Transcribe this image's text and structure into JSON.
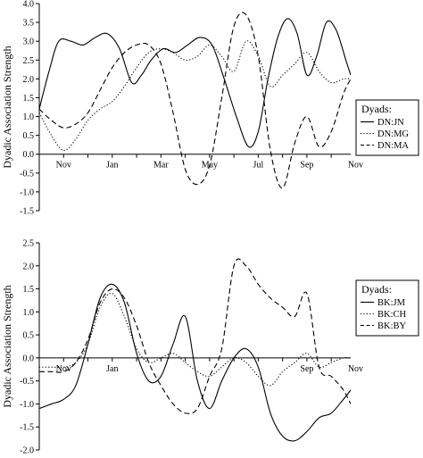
{
  "chart_data": [
    {
      "type": "line",
      "ylabel": "Dyadic Association Strength",
      "ylim": [
        -1.5,
        4.0
      ],
      "yticks": [
        "4.0",
        "3.5",
        "3.0",
        "2.5",
        "2.0",
        "1.5",
        "1.0",
        "0.5",
        "0.0",
        "-0.5",
        "-1.0",
        "-1.5"
      ],
      "xlim": [
        0,
        12.8
      ],
      "xticks": [
        {
          "label": "Nov",
          "x": 1
        },
        {
          "label": "Jan",
          "x": 3
        },
        {
          "label": "Mar",
          "x": 5
        },
        {
          "label": "May",
          "x": 7
        },
        {
          "label": "Jul",
          "x": 9
        },
        {
          "label": "Sep",
          "x": 11
        },
        {
          "label": "Nov",
          "x": 13
        }
      ],
      "legend": {
        "title": "Dyads:",
        "position": "right"
      },
      "series": [
        {
          "name": "DN:JN",
          "style": "solid",
          "x": [
            0,
            0.4,
            0.8,
            1.3,
            1.8,
            2.3,
            2.8,
            3.3,
            3.8,
            4.2,
            4.6,
            5.1,
            5.6,
            6.1,
            6.6,
            7.1,
            7.6,
            8.1,
            8.6,
            9.0,
            9.4,
            9.8,
            10.2,
            10.6,
            11.0,
            11.4,
            11.8,
            12.2,
            12.6,
            12.8
          ],
          "values": [
            1.2,
            2.2,
            3.0,
            3.0,
            2.9,
            3.1,
            3.2,
            2.8,
            1.9,
            2.1,
            2.5,
            2.8,
            2.7,
            2.9,
            3.1,
            2.9,
            2.0,
            1.0,
            0.2,
            0.6,
            2.0,
            3.1,
            3.6,
            3.2,
            2.1,
            2.6,
            3.5,
            3.3,
            2.5,
            2.1
          ]
        },
        {
          "name": "DN:MG",
          "style": "dotted",
          "x": [
            0,
            0.5,
            1.0,
            1.5,
            2.0,
            2.5,
            3.0,
            3.5,
            4.0,
            4.5,
            5.0,
            5.5,
            6.0,
            6.5,
            7.0,
            7.5,
            8.0,
            8.5,
            9.0,
            9.5,
            10.0,
            10.5,
            11.0,
            11.5,
            12.0,
            12.5,
            12.8
          ],
          "values": [
            1.1,
            0.5,
            0.1,
            0.4,
            0.9,
            1.2,
            1.4,
            1.8,
            2.3,
            2.7,
            2.8,
            2.7,
            2.5,
            2.6,
            2.9,
            2.6,
            2.2,
            3.0,
            2.6,
            1.8,
            2.1,
            2.4,
            2.7,
            2.2,
            1.9,
            2.0,
            2.0
          ]
        },
        {
          "name": "DN:MA",
          "style": "dashed",
          "x": [
            0,
            0.5,
            1.0,
            1.5,
            2.0,
            2.5,
            3.0,
            3.5,
            4.0,
            4.5,
            5.0,
            5.5,
            6.0,
            6.5,
            7.0,
            7.5,
            8.0,
            8.5,
            9.0,
            9.5,
            10.0,
            10.5,
            11.0,
            11.5,
            12.0,
            12.5,
            12.8
          ],
          "values": [
            1.2,
            0.9,
            0.7,
            0.8,
            1.1,
            1.7,
            2.3,
            2.7,
            2.9,
            2.9,
            2.4,
            1.1,
            -0.4,
            -0.8,
            -0.3,
            1.5,
            3.4,
            3.7,
            2.6,
            0.1,
            -0.9,
            0.3,
            1.0,
            0.2,
            0.6,
            1.6,
            2.0
          ]
        }
      ]
    },
    {
      "type": "line",
      "ylabel": "Dyadic Association Strength",
      "ylim": [
        -2.0,
        2.5
      ],
      "yticks": [
        "2.5",
        "2.0",
        "1.5",
        "1.0",
        "0.5",
        "0.0",
        "-0.5",
        "-1.0",
        "-1.5",
        "-2.0"
      ],
      "xlim": [
        0,
        12.8
      ],
      "xticks": [
        {
          "label": "Nov",
          "x": 1
        },
        {
          "label": "Jan",
          "x": 3
        },
        {
          "label": "Sep",
          "x": 11
        },
        {
          "label": "Nov",
          "x": 13
        }
      ],
      "legend": {
        "title": "Dyads:",
        "position": "right"
      },
      "series": [
        {
          "name": "BK:JM",
          "style": "solid",
          "x": [
            0,
            0.5,
            1.0,
            1.5,
            2.0,
            2.5,
            3.0,
            3.5,
            4.0,
            4.5,
            5.0,
            5.5,
            6.0,
            6.5,
            7.0,
            7.5,
            8.0,
            8.5,
            9.0,
            9.5,
            10.0,
            10.5,
            11.0,
            11.5,
            12.0,
            12.5,
            12.8
          ],
          "values": [
            -1.1,
            -1.0,
            -0.9,
            -0.6,
            0.3,
            1.3,
            1.6,
            1.2,
            0.1,
            -0.5,
            -0.4,
            0.3,
            0.9,
            -0.5,
            -1.1,
            -0.5,
            0.0,
            0.2,
            -0.2,
            -1.2,
            -1.7,
            -1.8,
            -1.6,
            -1.3,
            -1.2,
            -0.9,
            -0.7
          ]
        },
        {
          "name": "BK:CH",
          "style": "dotted",
          "x": [
            0,
            0.5,
            1.0,
            1.5,
            2.0,
            2.5,
            3.0,
            3.5,
            4.0,
            4.5,
            5.0,
            5.5,
            6.0,
            6.5,
            7.0,
            7.5,
            8.0,
            8.5,
            9.0,
            9.5,
            10.0,
            10.5,
            11.0,
            11.5,
            12.0,
            12.5,
            12.8
          ],
          "values": [
            -0.2,
            -0.2,
            -0.2,
            -0.1,
            0.3,
            1.1,
            1.4,
            0.9,
            0.2,
            -0.1,
            0.0,
            0.1,
            -0.1,
            -0.3,
            -0.4,
            -0.2,
            0.0,
            -0.1,
            -0.4,
            -0.6,
            -0.3,
            -0.1,
            0.1,
            -0.2,
            -0.1,
            0.0,
            0.0
          ]
        },
        {
          "name": "BK:BY",
          "style": "dashed",
          "x": [
            0,
            0.5,
            1.0,
            1.5,
            2.0,
            2.5,
            3.0,
            3.5,
            4.0,
            4.5,
            5.0,
            5.5,
            6.0,
            6.5,
            7.0,
            7.5,
            8.0,
            8.5,
            9.0,
            9.5,
            10.0,
            10.5,
            11.0,
            11.5,
            12.0,
            12.5,
            12.8
          ],
          "values": [
            -0.3,
            -0.3,
            -0.3,
            -0.1,
            0.4,
            1.2,
            1.5,
            1.3,
            0.7,
            -0.1,
            -0.6,
            -1.0,
            -1.2,
            -1.1,
            -0.4,
            0.2,
            2.0,
            2.0,
            1.6,
            1.3,
            1.1,
            0.9,
            1.4,
            -0.2,
            -0.4,
            -0.7,
            -1.0
          ]
        }
      ]
    }
  ]
}
